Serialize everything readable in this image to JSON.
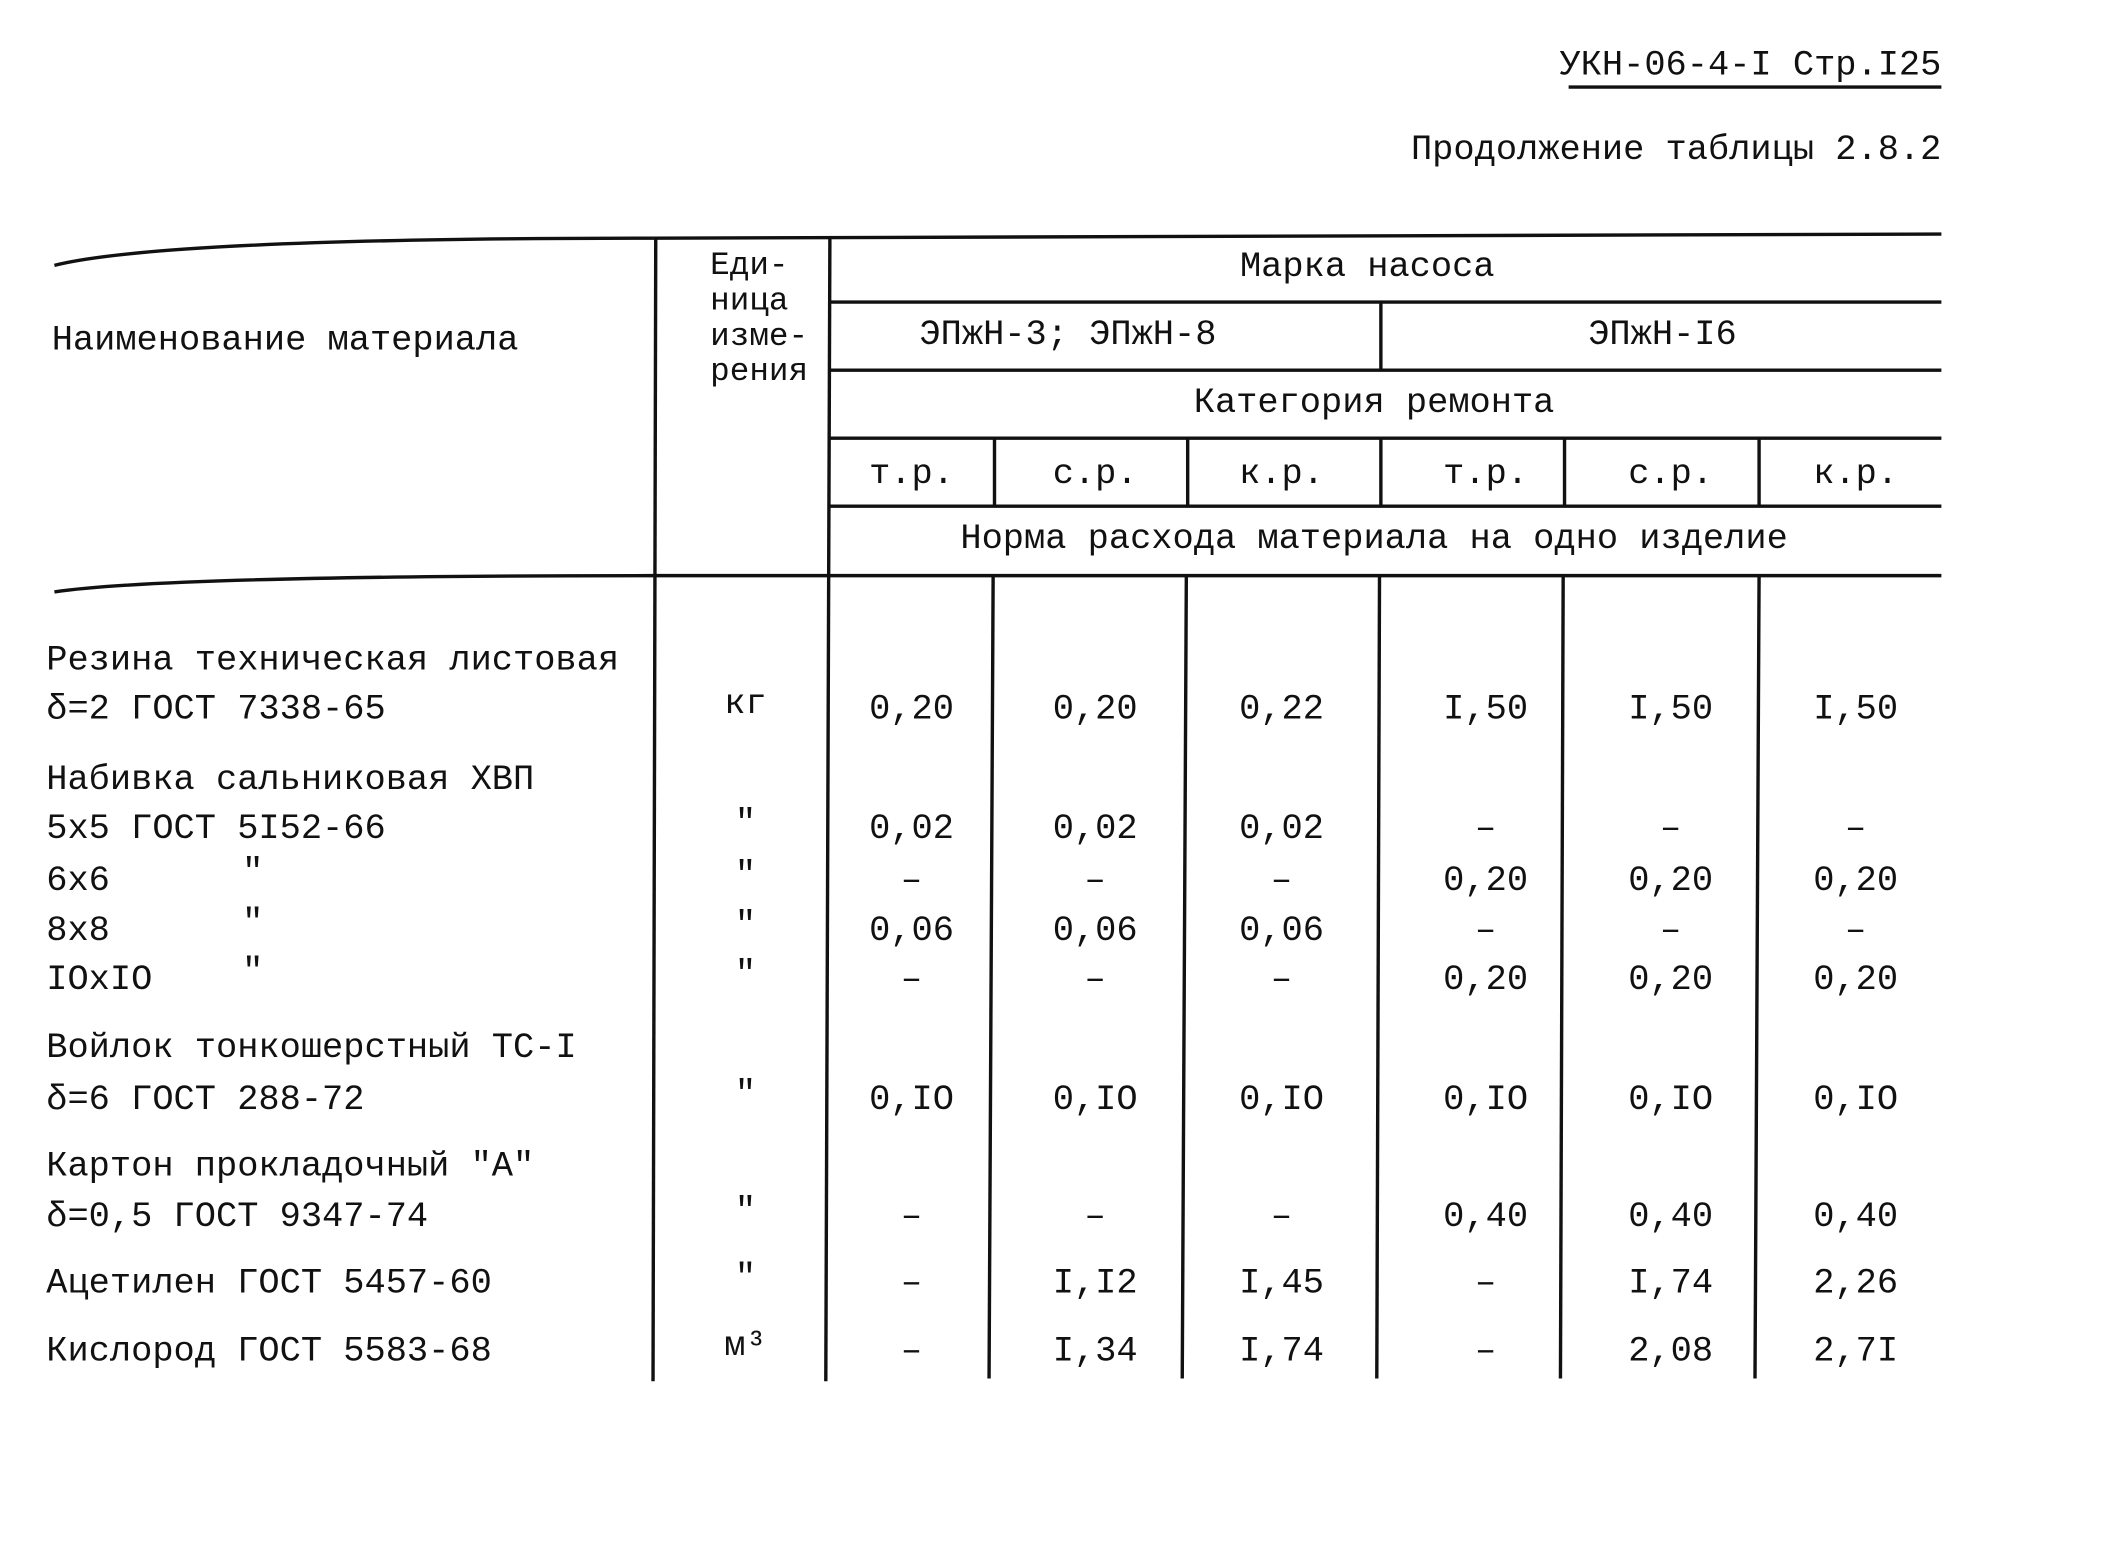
{
  "header": {
    "code": "УКН-06-4-I Стр.I25",
    "subtitle": "Продолжение таблицы 2.8.2"
  },
  "table": {
    "name_header": "Наименование материала",
    "unit_header": [
      "Еди-",
      "ница",
      "изме-",
      "рения"
    ],
    "pump_header": "Марка насоса",
    "pumps": [
      "ЭПжН-3;  ЭПжН-8",
      "ЭПжН-I6"
    ],
    "repair_header": "Категория ремонта",
    "repair_types": [
      "т.р.",
      "с.р.",
      "к.р.",
      "т.р.",
      "с.р.",
      "к.р."
    ],
    "norm_header": "Норма расхода материала на одно изделие",
    "rows": [
      {
        "name": [
          "Резина техническая листовая",
          "δ=2  ГОСТ 7338-65"
        ],
        "unit": "кг",
        "values": [
          "0,20",
          "0,20",
          "0,22",
          "I,50",
          "I,50",
          "I,50"
        ]
      },
      {
        "name": [
          "Набивка сальниковая ХВП"
        ]
      },
      {
        "name": [
          "5х5  ГОСТ 5I52-66"
        ],
        "unit": "\"",
        "values": [
          "0,02",
          "0,02",
          "0,02",
          "–",
          "–",
          "–"
        ]
      },
      {
        "name": [
          "6х6"
        ],
        "ditto": "\"",
        "unit": "\"",
        "values": [
          "–",
          "–",
          "–",
          "0,20",
          "0,20",
          "0,20"
        ]
      },
      {
        "name": [
          "8х8"
        ],
        "ditto": "\"",
        "unit": "\"",
        "values": [
          "0,06",
          "0,06",
          "0,06",
          "–",
          "–",
          "–"
        ]
      },
      {
        "name": [
          "IOхIO"
        ],
        "ditto": "\"",
        "unit": "\"",
        "values": [
          "–",
          "–",
          "–",
          "0,20",
          "0,20",
          "0,20"
        ]
      },
      {
        "name": [
          "Войлок тонкошерстный ТС-I",
          "δ=6 ГОСТ 288-72"
        ],
        "unit": "\"",
        "values": [
          "0,IO",
          "0,IO",
          "0,IO",
          "0,IO",
          "0,IO",
          "0,IO"
        ]
      },
      {
        "name": [
          "Картон прокладочный \"А\"",
          "δ=0,5  ГОСТ 9347-74"
        ],
        "unit": "\"",
        "values": [
          "–",
          "–",
          "–",
          "0,40",
          "0,40",
          "0,40"
        ]
      },
      {
        "name": [
          "Ацетилен ГОСТ 5457-60"
        ],
        "unit": "\"",
        "values": [
          "–",
          "I,I2",
          "I,45",
          "–",
          "I,74",
          "2,26"
        ]
      },
      {
        "name": [
          "Кислород ГОСТ 5583-68"
        ],
        "unit": "м³",
        "values": [
          "–",
          "I,34",
          "I,74",
          "–",
          "2,08",
          "2,7I"
        ]
      }
    ]
  }
}
